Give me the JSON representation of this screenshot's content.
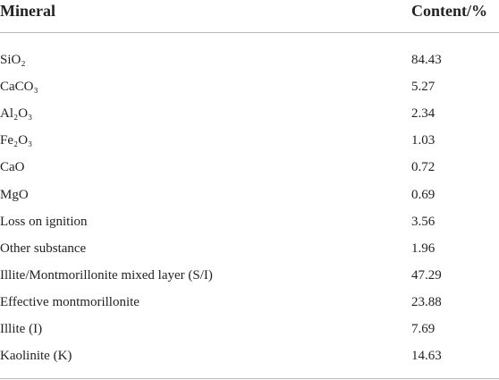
{
  "table": {
    "header": [
      "Mineral",
      "Content/%"
    ],
    "rows": [
      [
        "SiO₂",
        84.43
      ],
      [
        "CaCO₃",
        5.27
      ],
      [
        "Al₂O₃",
        2.34
      ],
      [
        "Fe₂O₃",
        1.03
      ],
      [
        "CaO",
        0.72
      ],
      [
        "MgO",
        0.69
      ],
      [
        "Loss on ignition",
        3.56
      ],
      [
        "Other substance",
        1.96
      ],
      [
        "Illite/Montmorillonite mixed layer (S/I)",
        47.29
      ],
      [
        "Effective montmorillonite",
        23.88
      ],
      [
        "Illite (I)",
        7.69
      ],
      [
        "Kaolinite (K)",
        14.63
      ]
    ]
  }
}
